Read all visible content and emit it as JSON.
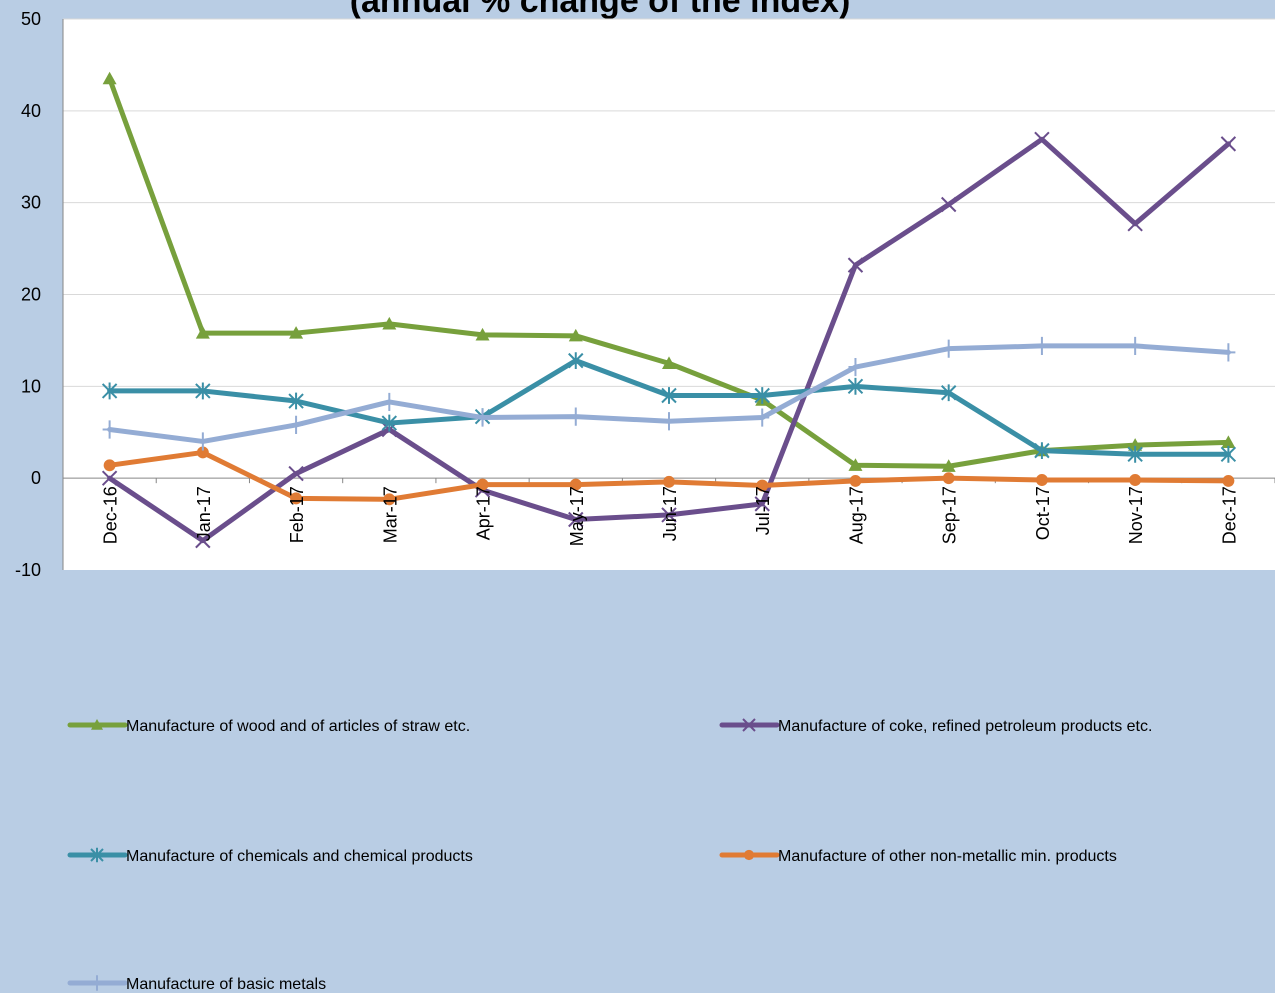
{
  "chart_data": {
    "type": "line",
    "title": "(annual % change of the index)",
    "xlabel": "",
    "ylabel": "",
    "ylim": [
      -10,
      50
    ],
    "yticks": [
      -10,
      0,
      10,
      20,
      30,
      40,
      50
    ],
    "grid": true,
    "legend_position": "bottom",
    "categories": [
      "Dec-16",
      "Jan-17",
      "Feb-17",
      "Mar-17",
      "Apr-17",
      "May-17",
      "Jun-17",
      "Jul-17",
      "Aug-17",
      "Sep-17",
      "Oct-17",
      "Nov-17",
      "Dec-17"
    ],
    "series": [
      {
        "name": "Manufacture of wood and of articles of straw etc.",
        "color": "#77a03c",
        "marker": "triangle",
        "values": [
          43.5,
          15.8,
          15.8,
          16.8,
          15.6,
          15.5,
          12.5,
          8.5,
          1.4,
          1.3,
          3.0,
          3.6,
          3.9
        ]
      },
      {
        "name": "Manufacture of coke, refined petroleum products etc.",
        "color": "#6a4e8c",
        "marker": "cross",
        "values": [
          0.0,
          -6.8,
          0.5,
          5.3,
          -1.3,
          -4.5,
          -4.0,
          -2.8,
          23.2,
          29.8,
          36.9,
          27.7,
          36.4
        ]
      },
      {
        "name": "Manufacture of chemicals and chemical products",
        "color": "#3a8fa6",
        "marker": "asterisk",
        "values": [
          9.5,
          9.5,
          8.4,
          6.0,
          6.7,
          12.8,
          9.0,
          9.0,
          10.0,
          9.3,
          3.0,
          2.6,
          2.6
        ]
      },
      {
        "name": "Manufacture of other non-metallic min. products",
        "color": "#e07b34",
        "marker": "circle",
        "values": [
          1.4,
          2.8,
          -2.2,
          -2.3,
          -0.7,
          -0.7,
          -0.4,
          -0.8,
          -0.3,
          0.0,
          -0.2,
          -0.2,
          -0.3
        ]
      },
      {
        "name": "Manufacture of basic metals",
        "color": "#94acd4",
        "marker": "plus",
        "values": [
          5.3,
          4.0,
          5.8,
          8.3,
          6.6,
          6.7,
          6.2,
          6.6,
          12.1,
          14.1,
          14.4,
          14.4,
          13.7
        ]
      }
    ]
  }
}
